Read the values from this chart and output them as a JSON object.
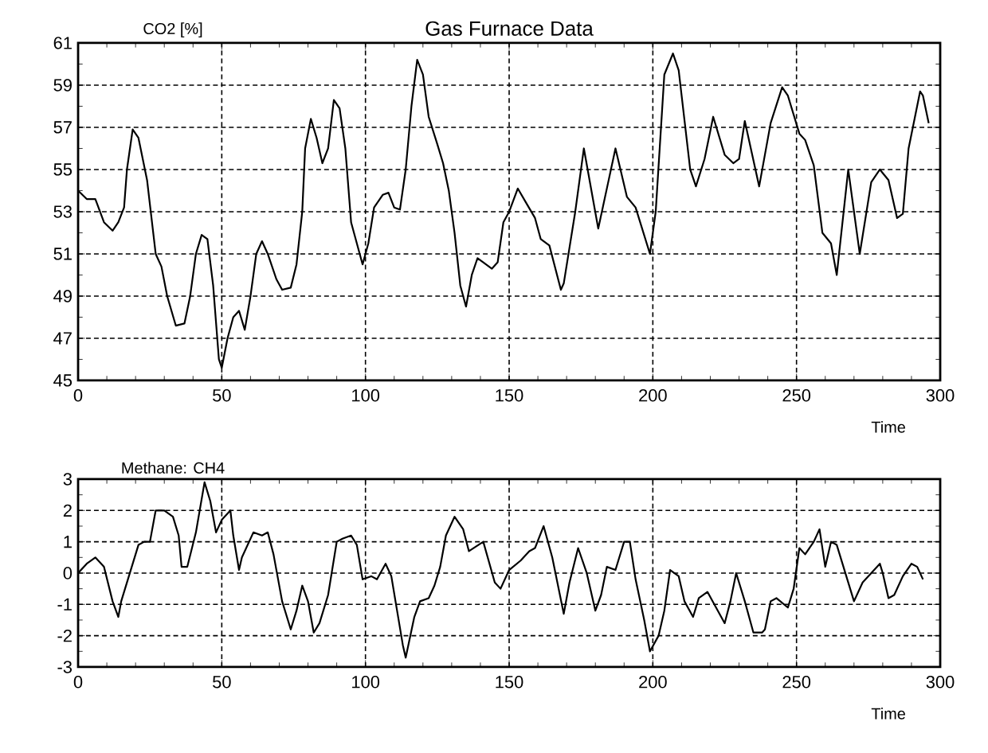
{
  "chart_data": [
    {
      "type": "line",
      "title": "Gas Furnace Data",
      "ylabel": "CO2 [%]",
      "xlabel": "Time",
      "xlim": [
        0,
        300
      ],
      "xticks": [
        0,
        50,
        100,
        150,
        200,
        250,
        300
      ],
      "ylim": [
        45,
        61
      ],
      "yticks": [
        45,
        47,
        49,
        51,
        53,
        55,
        57,
        59,
        61
      ],
      "grid": true,
      "series": [
        {
          "color": "#000000",
          "x": [
            0,
            3,
            6,
            9,
            12,
            14,
            16,
            17,
            19,
            21,
            24,
            27,
            29,
            31,
            34,
            37,
            39,
            41,
            43,
            45,
            47,
            49,
            50,
            52,
            54,
            56,
            58,
            60,
            62,
            64,
            66,
            69,
            71,
            74,
            76,
            78,
            79,
            81,
            83,
            85,
            87,
            89,
            91,
            93,
            95,
            97,
            99,
            101,
            103,
            106,
            108,
            110,
            112,
            114,
            116,
            118,
            120,
            122,
            125,
            127,
            129,
            131,
            133,
            135,
            137,
            139,
            141,
            144,
            146,
            148,
            150,
            153,
            156,
            159,
            161,
            164,
            168,
            169,
            173,
            176,
            181,
            187,
            191,
            194,
            199,
            201,
            204,
            207,
            209,
            213,
            215,
            218,
            221,
            225,
            228,
            230,
            232,
            237,
            241,
            245,
            247,
            251,
            253,
            256,
            259,
            262,
            264,
            268,
            272,
            276,
            279,
            282,
            285,
            287,
            289,
            293,
            294,
            296
          ],
          "values": [
            54.0,
            53.6,
            53.6,
            52.5,
            52.1,
            52.5,
            53.2,
            55.0,
            56.9,
            56.5,
            54.5,
            51.0,
            50.4,
            49.0,
            47.6,
            47.7,
            49.0,
            51.0,
            51.9,
            51.7,
            49.5,
            46.0,
            45.6,
            47.0,
            48.0,
            48.3,
            47.4,
            49.0,
            51.0,
            51.6,
            51.0,
            49.8,
            49.3,
            49.4,
            50.5,
            53.0,
            56.0,
            57.4,
            56.5,
            55.3,
            56.0,
            58.3,
            57.9,
            56.0,
            52.5,
            51.5,
            50.5,
            51.5,
            53.2,
            53.8,
            53.9,
            53.2,
            53.1,
            55.0,
            58.0,
            60.2,
            59.5,
            57.5,
            56.2,
            55.3,
            54.0,
            52.0,
            49.5,
            48.5,
            50.0,
            50.8,
            50.6,
            50.3,
            50.6,
            52.5,
            53.0,
            54.1,
            53.4,
            52.7,
            51.7,
            51.4,
            49.3,
            49.6,
            53.0,
            56.0,
            52.2,
            56.0,
            53.7,
            53.2,
            51.0,
            53.0,
            59.5,
            60.5,
            59.7,
            55.0,
            54.2,
            55.5,
            57.5,
            55.7,
            55.3,
            55.5,
            57.3,
            54.2,
            57.2,
            58.9,
            58.5,
            56.7,
            56.4,
            55.2,
            52.0,
            51.5,
            50.0,
            55.0,
            51.0,
            54.4,
            55.0,
            54.5,
            52.7,
            52.9,
            56.0,
            58.7,
            58.5,
            57.2
          ]
        }
      ]
    },
    {
      "type": "line",
      "ylabel": "Methane: CH4",
      "xlabel": "Time",
      "xlim": [
        0,
        300
      ],
      "xticks": [
        0,
        50,
        100,
        150,
        200,
        250,
        300
      ],
      "ylim": [
        -3,
        3
      ],
      "yticks": [
        -3,
        -2,
        -1,
        0,
        1,
        2,
        3
      ],
      "grid": true,
      "series": [
        {
          "color": "#000000",
          "x": [
            0,
            3,
            6,
            9,
            12,
            14,
            15,
            18,
            21,
            23,
            25,
            27,
            30,
            33,
            35,
            36,
            38,
            41,
            44,
            46,
            48,
            50,
            53,
            54,
            56,
            57,
            61,
            64,
            66,
            68,
            71,
            74,
            76,
            78,
            80,
            82,
            84,
            87,
            90,
            92,
            95,
            97,
            99,
            102,
            104,
            107,
            109,
            111,
            113,
            114,
            117,
            119,
            122,
            124,
            126,
            128,
            131,
            134,
            136,
            141,
            145,
            147,
            150,
            154,
            157,
            159,
            162,
            165,
            169,
            171,
            174,
            177,
            180,
            182,
            184,
            187,
            190,
            192,
            194,
            197,
            199,
            202,
            204,
            206,
            209,
            211,
            214,
            216,
            219,
            222,
            225,
            227,
            229,
            232,
            235,
            238,
            239,
            241,
            243,
            247,
            249,
            251,
            253,
            256,
            258,
            260,
            262,
            264,
            267,
            270,
            273,
            276,
            279,
            280,
            282,
            284,
            287,
            290,
            292,
            294
          ],
          "values": [
            0.0,
            0.3,
            0.5,
            0.2,
            -0.9,
            -1.4,
            -0.9,
            0.0,
            0.9,
            1.0,
            1.0,
            2.0,
            2.0,
            1.8,
            1.2,
            0.2,
            0.2,
            1.3,
            2.9,
            2.3,
            1.3,
            1.7,
            2.0,
            1.2,
            0.1,
            0.5,
            1.3,
            1.2,
            1.3,
            0.6,
            -0.9,
            -1.8,
            -1.2,
            -0.4,
            -0.9,
            -1.9,
            -1.6,
            -0.7,
            1.0,
            1.1,
            1.2,
            0.9,
            -0.2,
            -0.1,
            -0.2,
            0.3,
            -0.1,
            -1.2,
            -2.3,
            -2.7,
            -1.4,
            -0.9,
            -0.8,
            -0.4,
            0.2,
            1.2,
            1.8,
            1.4,
            0.7,
            1.0,
            -0.3,
            -0.5,
            0.1,
            0.4,
            0.7,
            0.8,
            1.5,
            0.5,
            -1.3,
            -0.3,
            0.8,
            0.0,
            -1.2,
            -0.7,
            0.2,
            0.1,
            1.0,
            1.0,
            -0.2,
            -1.5,
            -2.5,
            -2.0,
            -1.2,
            0.1,
            -0.1,
            -0.9,
            -1.4,
            -0.8,
            -0.6,
            -1.1,
            -1.6,
            -0.9,
            0.0,
            -0.9,
            -1.9,
            -1.9,
            -1.8,
            -0.9,
            -0.8,
            -1.1,
            -0.5,
            0.8,
            0.6,
            1.0,
            1.4,
            0.2,
            1.0,
            0.9,
            0.0,
            -0.9,
            -0.3,
            0.0,
            0.3,
            0.0,
            -0.8,
            -0.7,
            -0.1,
            0.3,
            0.2,
            -0.2
          ]
        }
      ]
    }
  ]
}
